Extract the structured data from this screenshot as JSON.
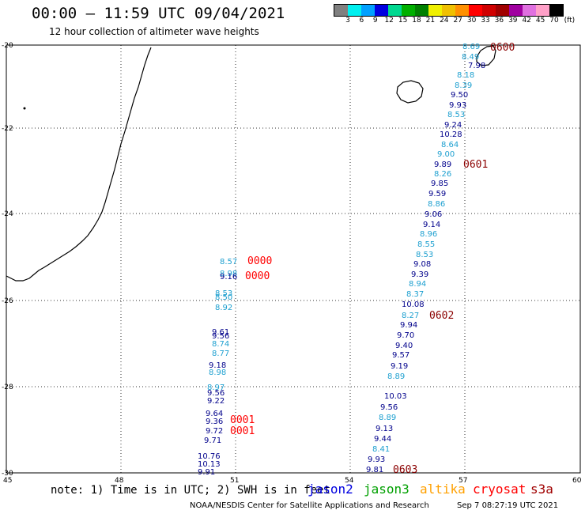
{
  "header": {
    "title": "00:00 – 11:59 UTC 09/04/2021",
    "subtitle": "12 hour collection of altimeter wave heights"
  },
  "colorbar": {
    "colors": [
      "#808080",
      "#00f0f0",
      "#00a0ff",
      "#0000e0",
      "#00d890",
      "#00b000",
      "#008000",
      "#f0f000",
      "#f0c000",
      "#ff9000",
      "#ff0000",
      "#d00000",
      "#a00000",
      "#a000a0",
      "#e070e0",
      "#ffa0c8",
      "#000000"
    ],
    "ticks": [
      "3",
      "6",
      "9",
      "12",
      "15",
      "18",
      "21",
      "24",
      "27",
      "30",
      "33",
      "36",
      "39",
      "42",
      "45",
      "70"
    ],
    "unit": "(ft)"
  },
  "axes": {
    "lat_labels": [
      "-20",
      "-22",
      "-24",
      "-26",
      "-28",
      "-30"
    ],
    "lon_labels": [
      "45",
      "48",
      "51",
      "54",
      "57",
      "60"
    ]
  },
  "satellite_colors": {
    "dark": "#00008b",
    "light": "#1ea0d0",
    "time_red": "#ff0000",
    "time_darkred": "#8b0000"
  },
  "tracks": {
    "west": {
      "values": [
        "8.57",
        "8.98",
        "9.16",
        "8.53",
        "8.50",
        "8.92",
        "9.61",
        "9.56",
        "8.74",
        "8.77",
        "9.18",
        "8.98",
        "8.97",
        "9.56",
        "9.22",
        "9.64",
        "9.36",
        "9.72",
        "9.71",
        "10.76",
        "10.13",
        "9.91"
      ],
      "colors": [
        "light",
        "light",
        "dark",
        "light",
        "light",
        "light",
        "dark",
        "dark",
        "light",
        "light",
        "dark",
        "light",
        "light",
        "dark",
        "dark",
        "dark",
        "dark",
        "dark",
        "dark",
        "dark",
        "dark",
        "dark"
      ],
      "times": [
        "0000",
        "0000",
        "0001",
        "0001"
      ],
      "time_colors": [
        "time_red",
        "time_red",
        "time_red",
        "time_red"
      ]
    },
    "east": {
      "values": [
        "8.69",
        "8.49",
        "7.98",
        "8.18",
        "8.39",
        "9.50",
        "9.93",
        "8.53",
        "9.24",
        "10.28",
        "8.64",
        "9.00",
        "9.89",
        "8.26",
        "9.85",
        "9.59",
        "8.86",
        "9.06",
        "9.14",
        "8.96",
        "8.55",
        "8.53",
        "9.08",
        "9.39",
        "8.94",
        "8.37",
        "10.08",
        "8.27",
        "9.94",
        "9.70",
        "9.40",
        "9.57",
        "9.19",
        "8.89",
        "10.03",
        "9.56",
        "8.89",
        "9.13",
        "9.44",
        "8.41",
        "9.93",
        "9.81"
      ],
      "colors": [
        "light",
        "light",
        "dark",
        "light",
        "light",
        "dark",
        "dark",
        "light",
        "dark",
        "dark",
        "light",
        "light",
        "dark",
        "light",
        "dark",
        "dark",
        "light",
        "dark",
        "dark",
        "light",
        "light",
        "light",
        "dark",
        "dark",
        "light",
        "light",
        "dark",
        "light",
        "dark",
        "dark",
        "dark",
        "dark",
        "dark",
        "light",
        "dark",
        "dark",
        "light",
        "dark",
        "dark",
        "light",
        "dark",
        "dark"
      ],
      "times": [
        "0600",
        "0601",
        "0602",
        "0603"
      ],
      "time_colors": [
        "time_darkred",
        "time_darkred",
        "time_darkred",
        "time_darkred"
      ]
    }
  },
  "footer": {
    "note": "note: 1) Time is in UTC; 2) SWH is in feet",
    "legend": [
      {
        "label": "jason2",
        "color": "#0000e0"
      },
      {
        "label": "jason3",
        "color": "#00a000"
      },
      {
        "label": "altika",
        "color": "#ffa000"
      },
      {
        "label": "cryosat",
        "color": "#ff0000"
      },
      {
        "label": "s3a",
        "color": "#a00000"
      }
    ],
    "credit": "NOAA/NESDIS Center for Satellite Applications and Research",
    "stamp": "Sep  7 08:27:19 UTC 2021"
  }
}
